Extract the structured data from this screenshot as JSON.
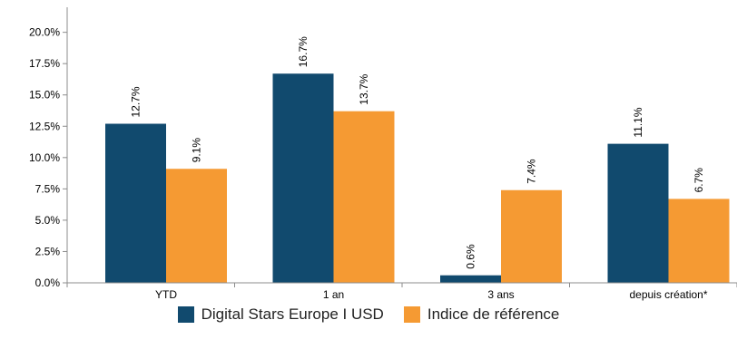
{
  "chart_data": {
    "type": "bar",
    "categories": [
      "YTD",
      "1 an",
      "3 ans",
      "depuis création*"
    ],
    "series": [
      {
        "name": "Digital Stars Europe I USD",
        "values": [
          12.7,
          16.7,
          0.6,
          11.1
        ],
        "color": "#114a6e",
        "labels": [
          "12.7%",
          "16.7%",
          "0.6%",
          "11.1%"
        ]
      },
      {
        "name": "Indice de référence",
        "values": [
          9.1,
          13.7,
          7.4,
          6.7
        ],
        "color": "#f59a33",
        "labels": [
          "9.1%",
          "13.7%",
          "7.4%",
          "6.7%"
        ]
      }
    ],
    "y_ticks": [
      {
        "value": 0,
        "label": "0.0%"
      },
      {
        "value": 2.5,
        "label": "2.5%"
      },
      {
        "value": 5,
        "label": "5.0%"
      },
      {
        "value": 7.5,
        "label": "7.5%"
      },
      {
        "value": 10,
        "label": "10.0%"
      },
      {
        "value": 12.5,
        "label": "12.5%"
      },
      {
        "value": 15,
        "label": "15.0%"
      },
      {
        "value": 17.5,
        "label": "17.5%"
      },
      {
        "value": 20,
        "label": "20.0%"
      }
    ],
    "ylim": [
      0,
      22
    ],
    "grid": false,
    "legend_position": "bottom-center",
    "data_label_orientation": "vertical"
  }
}
